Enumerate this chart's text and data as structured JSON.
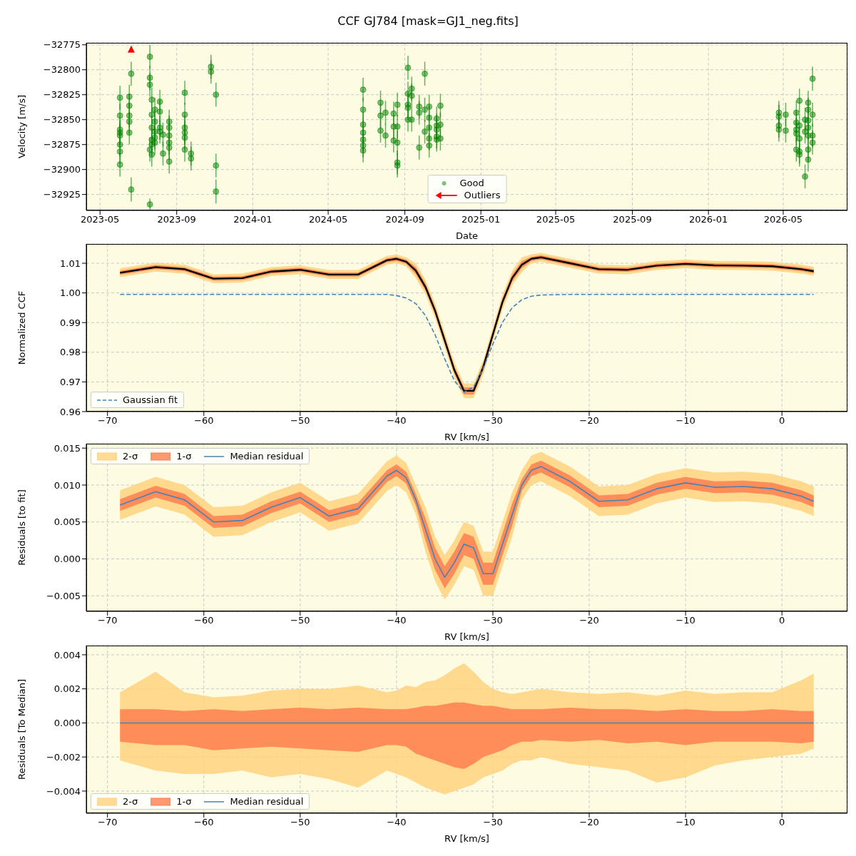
{
  "chart_data": [
    {
      "type": "scatter",
      "title": "CCF GJ784 [mask=GJ1_neg.fits]",
      "xlabel": "Date",
      "ylabel": "Velocity [m/s]",
      "xlim": [
        "2023-04-09",
        "2026-08-12"
      ],
      "xticks": [
        "2023-05",
        "2023-09",
        "2024-01",
        "2024-05",
        "2024-09",
        "2025-01",
        "2025-05",
        "2025-09",
        "2026-01",
        "2026-05"
      ],
      "ylim": [
        -32941,
        -32773
      ],
      "yticks": [
        -32925,
        -32900,
        -32875,
        -32850,
        -32825,
        -32800,
        -32775
      ],
      "grid": true,
      "legend": "bottom",
      "x": [
        "2023-06-02",
        "2023-06-02",
        "2023-06-02",
        "2023-06-02",
        "2023-06-02",
        "2023-06-02",
        "2023-06-02",
        "2023-06-02",
        "2023-06-17",
        "2023-06-17",
        "2023-06-17",
        "2023-06-17",
        "2023-06-17",
        "2023-06-20",
        "2023-06-20",
        "2023-07-20",
        "2023-07-20",
        "2023-07-20",
        "2023-07-20",
        "2023-07-20",
        "2023-07-23",
        "2023-07-23",
        "2023-07-23",
        "2023-07-23",
        "2023-07-23",
        "2023-07-23",
        "2023-07-28",
        "2023-07-28",
        "2023-07-28",
        "2023-07-28",
        "2023-07-28",
        "2023-08-05",
        "2023-08-05",
        "2023-08-05",
        "2023-08-05",
        "2023-08-10",
        "2023-08-10",
        "2023-08-20",
        "2023-08-20",
        "2023-08-20",
        "2023-08-20",
        "2023-08-20",
        "2023-08-20",
        "2023-09-14",
        "2023-09-14",
        "2023-09-14",
        "2023-09-14",
        "2023-09-14",
        "2023-09-14",
        "2023-09-24",
        "2023-09-24",
        "2023-10-26",
        "2023-10-26",
        "2023-11-03",
        "2023-11-03",
        "2023-11-03",
        "2024-06-26",
        "2024-06-26",
        "2024-06-26",
        "2024-06-26",
        "2024-06-26",
        "2024-06-26",
        "2024-06-26",
        "2024-07-24",
        "2024-07-24",
        "2024-07-24",
        "2024-08-01",
        "2024-08-01",
        "2024-08-14",
        "2024-08-14",
        "2024-08-14",
        "2024-08-20",
        "2024-08-20",
        "2024-08-20",
        "2024-08-20",
        "2024-08-20",
        "2024-09-06",
        "2024-09-06",
        "2024-09-06",
        "2024-09-06",
        "2024-09-06",
        "2024-09-12",
        "2024-09-12",
        "2024-09-12",
        "2024-09-24",
        "2024-09-24",
        "2024-09-24",
        "2024-10-03",
        "2024-10-03",
        "2024-10-03",
        "2024-10-10",
        "2024-10-10",
        "2024-10-10",
        "2024-10-10",
        "2024-10-10",
        "2024-10-22",
        "2024-10-22",
        "2024-10-22",
        "2024-10-22",
        "2024-10-22",
        "2024-10-28",
        "2024-10-28",
        "2024-10-28",
        "2026-04-24",
        "2026-04-24",
        "2026-04-24",
        "2026-04-24",
        "2026-05-05",
        "2026-05-05",
        "2026-05-22",
        "2026-05-22",
        "2026-05-22",
        "2026-05-22",
        "2026-05-22",
        "2026-05-27",
        "2026-05-27",
        "2026-05-27",
        "2026-05-27",
        "2026-05-27",
        "2026-06-05",
        "2026-06-05",
        "2026-06-05",
        "2026-06-10",
        "2026-06-10",
        "2026-06-10",
        "2026-06-10",
        "2026-06-10",
        "2026-06-10",
        "2026-06-10",
        "2026-06-17",
        "2026-06-17",
        "2026-06-17",
        "2026-06-17"
      ],
      "series": [
        {
          "name": "Good",
          "color": "#008000",
          "marker": "circle",
          "values": [
            -32828,
            -32846,
            -32860,
            -32863,
            -32866,
            -32875,
            -32882,
            -32895,
            -32827,
            -32836,
            -32846,
            -32852,
            -32863,
            -32804,
            -32920,
            -32787,
            -32808,
            -32815,
            -32880,
            -32935,
            -32830,
            -32845,
            -32858,
            -32870,
            -32875,
            -32885,
            -32840,
            -32852,
            -32862,
            -32868,
            -32873,
            -32832,
            -32842,
            -32858,
            -32862,
            -32865,
            -32884,
            -32852,
            -32858,
            -32866,
            -32873,
            -32878,
            -32892,
            -32823,
            -32845,
            -32858,
            -32863,
            -32868,
            -32880,
            -32884,
            -32889,
            -32797,
            -32802,
            -32825,
            -32896,
            -32922,
            -32820,
            -32840,
            -32855,
            -32863,
            -32870,
            -32876,
            -32881,
            -32833,
            -32846,
            -32861,
            -32843,
            -32866,
            -32844,
            -32857,
            -32871,
            -32835,
            -32857,
            -32873,
            -32893,
            -32896,
            -32798,
            -32824,
            -32835,
            -32838,
            -32850,
            -32819,
            -32826,
            -32850,
            -32837,
            -32843,
            -32878,
            -32804,
            -32840,
            -32862,
            -32837,
            -32848,
            -32858,
            -32869,
            -32876,
            -32849,
            -32856,
            -32860,
            -32867,
            -32870,
            -32836,
            -32855,
            -32869,
            -32843,
            -32847,
            -32856,
            -32860,
            -32845,
            -32861,
            -32843,
            -32853,
            -32860,
            -32864,
            -32880,
            -32831,
            -32856,
            -32869,
            -32882,
            -32885,
            -32850,
            -32862,
            -32907,
            -32833,
            -32840,
            -32851,
            -32858,
            -32866,
            -32880,
            -32890,
            -32809,
            -32845,
            -32866,
            -32873
          ],
          "errors": [
            12,
            12,
            12,
            12,
            12,
            12,
            12,
            12,
            12,
            12,
            12,
            12,
            12,
            12,
            12,
            12,
            12,
            12,
            12,
            6,
            12,
            12,
            12,
            12,
            12,
            12,
            12,
            12,
            12,
            12,
            12,
            12,
            12,
            12,
            12,
            12,
            12,
            12,
            12,
            12,
            12,
            12,
            12,
            12,
            12,
            12,
            12,
            12,
            12,
            12,
            12,
            12,
            12,
            12,
            12,
            12,
            12,
            12,
            12,
            12,
            12,
            12,
            12,
            12,
            12,
            12,
            12,
            12,
            12,
            12,
            12,
            12,
            12,
            12,
            12,
            12,
            12,
            12,
            12,
            12,
            12,
            12,
            12,
            12,
            12,
            12,
            12,
            12,
            12,
            12,
            12,
            12,
            12,
            12,
            12,
            12,
            12,
            12,
            12,
            12,
            12,
            12,
            12,
            12,
            12,
            12,
            12,
            12,
            12,
            12,
            12,
            12,
            12,
            12,
            12,
            12,
            12,
            12,
            12,
            12,
            12,
            12,
            12,
            12,
            12,
            12,
            12,
            12,
            12,
            12,
            12,
            12,
            12
          ]
        },
        {
          "name": "Outliers",
          "color": "#ff0000",
          "marker": "triangle",
          "x": [
            "2023-06-20"
          ],
          "values": [
            -32780
          ]
        }
      ]
    },
    {
      "type": "line",
      "xlabel": "RV [km/s]",
      "ylabel": "Normalized CCF",
      "xlim": [
        -72.2,
        6.8
      ],
      "xticks": [
        -70,
        -60,
        -50,
        -40,
        -30,
        -20,
        -10,
        0
      ],
      "ylim": [
        0.96,
        1.0165
      ],
      "yticks": [
        {
          "value": 0.96,
          "label": "0.96"
        },
        {
          "value": 0.97,
          "label": "0.97"
        },
        {
          "value": 0.98,
          "label": "0.98"
        },
        {
          "value": 0.99,
          "label": "0.99"
        },
        {
          "value": 1.0,
          "label": "1.00"
        },
        {
          "value": 1.01,
          "label": "1.01"
        }
      ],
      "grid": true,
      "legend": "bottom left",
      "x": [
        -68.7,
        -65,
        -62,
        -59,
        -56,
        -53,
        -50,
        -47,
        -44,
        -41,
        -40,
        -39,
        -38,
        -37,
        -36,
        -35,
        -34,
        -33,
        -32,
        -31,
        -30,
        -29,
        -28,
        -27,
        -26,
        -25,
        -22,
        -19,
        -16,
        -13,
        -10,
        -7,
        -4,
        -1,
        2,
        3.3
      ],
      "series": [
        {
          "color": "#ffd27f",
          "values": [
            null,
            null,
            null,
            null,
            null,
            null,
            null,
            null,
            null,
            null,
            null,
            null,
            null,
            null,
            null,
            null,
            null,
            null,
            null,
            null,
            null,
            null,
            null,
            null,
            null,
            null,
            null,
            null,
            null,
            null,
            null,
            null,
            null,
            null,
            null,
            null
          ],
          "lower": [
            1.0053,
            1.0072,
            1.0065,
            1.0033,
            1.0035,
            1.0057,
            1.0063,
            1.0047,
            1.0047,
            1.0095,
            1.01,
            1.009,
            1.005,
            0.9995,
            0.9915,
            0.9815,
            0.9715,
            0.9645,
            0.9645,
            0.9725,
            0.9835,
            0.9945,
            1.0025,
            1.007,
            1.01,
            1.0105,
            1.0085,
            1.0065,
            1.0063,
            1.0077,
            1.0083,
            1.0078,
            1.0077,
            1.0075,
            1.0065,
            1.0058
          ],
          "upper": [
            1.0083,
            1.0102,
            1.0095,
            1.0063,
            1.0065,
            1.0087,
            1.0093,
            1.0077,
            1.0077,
            1.0125,
            1.013,
            1.012,
            1.01,
            1.0045,
            0.9965,
            0.9865,
            0.9765,
            0.9695,
            0.9695,
            0.9775,
            0.9885,
            0.9995,
            1.0075,
            1.012,
            1.013,
            1.0135,
            1.0115,
            1.0095,
            1.0093,
            1.0107,
            1.0113,
            1.0108,
            1.0107,
            1.0105,
            1.0095,
            1.0088
          ]
        },
        {
          "color": "#ff7f50",
          "values": [
            null,
            null,
            null,
            null,
            null,
            null,
            null,
            null,
            null,
            null,
            null,
            null,
            null,
            null,
            null,
            null,
            null,
            null,
            null,
            null,
            null,
            null,
            null,
            null,
            null,
            null,
            null,
            null,
            null,
            null,
            null,
            null,
            null,
            null,
            null,
            null
          ],
          "lower": [
            1.0061,
            1.008,
            1.0073,
            1.0041,
            1.0043,
            1.0065,
            1.0071,
            1.0055,
            1.0055,
            1.0103,
            1.0108,
            1.0098,
            1.0063,
            1.0008,
            0.9928,
            0.9828,
            0.9728,
            0.9658,
            0.9658,
            0.9738,
            0.9848,
            0.9958,
            1.0038,
            1.0083,
            1.0108,
            1.0113,
            1.0093,
            1.0073,
            1.0071,
            1.0085,
            1.0091,
            1.0086,
            1.0085,
            1.0083,
            1.0073,
            1.0066
          ],
          "upper": [
            1.0075,
            1.0094,
            1.0087,
            1.0055,
            1.0057,
            1.0079,
            1.0085,
            1.0069,
            1.0069,
            1.0117,
            1.0122,
            1.0112,
            1.0087,
            1.0032,
            0.9952,
            0.9852,
            0.9752,
            0.9682,
            0.9682,
            0.9762,
            0.9872,
            0.9982,
            1.0062,
            1.0107,
            1.0122,
            1.0127,
            1.0107,
            1.0087,
            1.0085,
            1.0099,
            1.0105,
            1.01,
            1.0099,
            1.0097,
            1.0087,
            1.008
          ]
        },
        {
          "color": "#000000",
          "values": [
            1.0068,
            1.0087,
            1.008,
            1.0048,
            1.005,
            1.0072,
            1.0078,
            1.0062,
            1.0062,
            1.011,
            1.0115,
            1.0105,
            1.0075,
            1.002,
            0.994,
            0.984,
            0.974,
            0.967,
            0.967,
            0.975,
            0.986,
            0.997,
            1.005,
            1.0095,
            1.0115,
            1.012,
            1.01,
            1.008,
            1.0078,
            1.0092,
            1.0098,
            1.0093,
            1.0092,
            1.009,
            1.008,
            1.0073
          ]
        },
        {
          "name": "Gaussian fit",
          "color": "#4682b4",
          "line_style": "dashed",
          "values": [
            0.9995,
            0.9995,
            0.9995,
            0.9995,
            0.9995,
            0.9995,
            0.9995,
            0.9995,
            0.9995,
            0.9995,
            0.9991,
            0.9983,
            0.9964,
            0.9924,
            0.9859,
            0.9778,
            0.9704,
            0.9665,
            0.9683,
            0.9746,
            0.9828,
            0.9901,
            0.995,
            0.9977,
            0.9989,
            0.9993,
            0.9995,
            0.9995,
            0.9995,
            0.9995,
            0.9995,
            0.9995,
            0.9995,
            0.9995,
            0.9995,
            0.9995
          ]
        }
      ]
    },
    {
      "type": "line",
      "xlabel": "RV [km/s]",
      "ylabel": "Residuals [to fit]",
      "xlim": [
        -72.2,
        6.8
      ],
      "xticks": [
        -70,
        -60,
        -50,
        -40,
        -30,
        -20,
        -10,
        0
      ],
      "ylim": [
        -0.0071,
        0.0156
      ],
      "yticks": [
        {
          "value": -0.005,
          "label": "−0.005"
        },
        {
          "value": 0,
          "label": "0.000"
        },
        {
          "value": 0.005,
          "label": "0.005"
        },
        {
          "value": 0.01,
          "label": "0.010"
        },
        {
          "value": 0.015,
          "label": "0.015"
        }
      ],
      "grid": true,
      "legend": "top left",
      "x": [
        -68.7,
        -65,
        -62,
        -59,
        -56,
        -53,
        -50,
        -47,
        -44,
        -41,
        -40,
        -39,
        -38,
        -37,
        -36,
        -35,
        -34,
        -33,
        -32,
        -31,
        -30,
        -29,
        -28,
        -27,
        -26,
        -25,
        -22,
        -19,
        -16,
        -13,
        -10,
        -7,
        -4,
        -1,
        2,
        3.3
      ],
      "series": [
        {
          "name": "2-σ",
          "color": "#ffd27f",
          "values": [
            null,
            null,
            null,
            null,
            null,
            null,
            null,
            null,
            null,
            null,
            null,
            null,
            null,
            null,
            null,
            null,
            null,
            null,
            null,
            null,
            null,
            null,
            null,
            null,
            null,
            null,
            null,
            null,
            null,
            null,
            null,
            null,
            null,
            null,
            null,
            null
          ],
          "lower": [
            0.0053,
            0.0071,
            0.006,
            0.003,
            0.0032,
            0.005,
            0.0063,
            0.0038,
            0.0048,
            0.0092,
            0.01,
            0.009,
            0.006,
            0.001,
            -0.003,
            -0.0055,
            -0.0035,
            -0.001,
            -0.0015,
            -0.005,
            -0.005,
            -0.001,
            0.003,
            0.008,
            0.01,
            0.0105,
            0.0085,
            0.0058,
            0.006,
            0.0075,
            0.0083,
            0.0077,
            0.0078,
            0.0075,
            0.0065,
            0.0058
          ],
          "upper": [
            0.0093,
            0.0111,
            0.01,
            0.007,
            0.0072,
            0.009,
            0.0103,
            0.0078,
            0.0088,
            0.0132,
            0.014,
            0.013,
            0.01,
            0.007,
            0.003,
            0.0005,
            0.0025,
            0.005,
            0.0045,
            0.001,
            0.001,
            0.005,
            0.009,
            0.012,
            0.014,
            0.0145,
            0.0125,
            0.0098,
            0.01,
            0.0115,
            0.0123,
            0.0117,
            0.0118,
            0.0115,
            0.0105,
            0.0098
          ]
        },
        {
          "name": "1-σ",
          "color": "#ff7f50",
          "values": [
            null,
            null,
            null,
            null,
            null,
            null,
            null,
            null,
            null,
            null,
            null,
            null,
            null,
            null,
            null,
            null,
            null,
            null,
            null,
            null,
            null,
            null,
            null,
            null,
            null,
            null,
            null,
            null,
            null,
            null,
            null,
            null,
            null,
            null,
            null,
            null
          ],
          "lower": [
            0.0065,
            0.0083,
            0.0072,
            0.0042,
            0.0044,
            0.0062,
            0.0075,
            0.005,
            0.006,
            0.0104,
            0.0112,
            0.0102,
            0.0072,
            0.0025,
            -0.0015,
            -0.004,
            -0.002,
            0.0005,
            0.0,
            -0.0035,
            -0.0035,
            0.0005,
            0.0045,
            0.0092,
            0.0112,
            0.0117,
            0.0097,
            0.007,
            0.0072,
            0.0087,
            0.0095,
            0.0089,
            0.009,
            0.0087,
            0.0077,
            0.007
          ],
          "upper": [
            0.0081,
            0.0099,
            0.0088,
            0.0058,
            0.006,
            0.0078,
            0.0091,
            0.0066,
            0.0076,
            0.012,
            0.0128,
            0.0118,
            0.0088,
            0.0055,
            0.0015,
            -0.001,
            0.001,
            0.0035,
            0.003,
            -0.0005,
            -0.0005,
            0.0035,
            0.0075,
            0.0108,
            0.0128,
            0.0133,
            0.0113,
            0.0086,
            0.0088,
            0.0103,
            0.0111,
            0.0105,
            0.0106,
            0.0103,
            0.0093,
            0.0086
          ]
        },
        {
          "name": "Median residual",
          "color": "#4682b4",
          "values": [
            0.0073,
            0.0091,
            0.008,
            0.005,
            0.0052,
            0.007,
            0.0083,
            0.0058,
            0.0068,
            0.0112,
            0.012,
            0.011,
            0.008,
            0.004,
            0.0,
            -0.0025,
            -0.0005,
            0.002,
            0.0015,
            -0.002,
            -0.002,
            0.002,
            0.006,
            0.01,
            0.012,
            0.0125,
            0.0105,
            0.0078,
            0.008,
            0.0095,
            0.0103,
            0.0097,
            0.0098,
            0.0095,
            0.0085,
            0.0078
          ]
        }
      ]
    },
    {
      "type": "line",
      "xlabel": "RV [km/s]",
      "ylabel": "Residuals [To Median]",
      "xlim": [
        -72.2,
        6.8
      ],
      "xticks": [
        -70,
        -60,
        -50,
        -40,
        -30,
        -20,
        -10,
        0
      ],
      "ylim": [
        -0.0053,
        0.00454
      ],
      "yticks": [
        {
          "value": -0.004,
          "label": "−0.004"
        },
        {
          "value": -0.002,
          "label": "−0.002"
        },
        {
          "value": 0,
          "label": "0.000"
        },
        {
          "value": 0.002,
          "label": "0.002"
        },
        {
          "value": 0.004,
          "label": "0.004"
        }
      ],
      "grid": true,
      "legend": "bottom left",
      "x": [
        -68.7,
        -65,
        -62,
        -59,
        -56,
        -53,
        -50,
        -47,
        -44,
        -41,
        -40,
        -39,
        -38,
        -37,
        -36,
        -35,
        -34,
        -33,
        -32,
        -31,
        -30,
        -29,
        -28,
        -27,
        -26,
        -25,
        -22,
        -19,
        -16,
        -13,
        -10,
        -7,
        -4,
        -1,
        2,
        3.3
      ],
      "series": [
        {
          "name": "2-σ",
          "color": "#ffd27f",
          "values": [
            null,
            null,
            null,
            null,
            null,
            null,
            null,
            null,
            null,
            null,
            null,
            null,
            null,
            null,
            null,
            null,
            null,
            null,
            null,
            null,
            null,
            null,
            null,
            null,
            null,
            null,
            null,
            null,
            null,
            null,
            null,
            null,
            null,
            null,
            null,
            null
          ],
          "lower": [
            -0.0022,
            -0.0028,
            -0.003,
            -0.003,
            -0.0028,
            -0.0032,
            -0.003,
            -0.0033,
            -0.0038,
            -0.0028,
            -0.003,
            -0.0032,
            -0.0035,
            -0.0038,
            -0.004,
            -0.0042,
            -0.004,
            -0.0038,
            -0.0036,
            -0.0032,
            -0.003,
            -0.0028,
            -0.0024,
            -0.0022,
            -0.0022,
            -0.002,
            -0.0024,
            -0.0026,
            -0.0028,
            -0.0035,
            -0.0032,
            -0.0025,
            -0.0022,
            -0.002,
            -0.0018,
            -0.0015
          ],
          "upper": [
            0.0018,
            0.003,
            0.0018,
            0.0015,
            0.0016,
            0.0019,
            0.002,
            0.002,
            0.0022,
            0.0018,
            0.0019,
            0.0022,
            0.0021,
            0.0024,
            0.0025,
            0.0028,
            0.0032,
            0.0035,
            0.003,
            0.0024,
            0.002,
            0.0018,
            0.0017,
            0.0018,
            0.0019,
            0.002,
            0.0018,
            0.0017,
            0.0018,
            0.0016,
            0.0019,
            0.0017,
            0.0018,
            0.0018,
            0.0025,
            0.0029
          ]
        },
        {
          "name": "1-σ",
          "color": "#ff7f50",
          "values": [
            null,
            null,
            null,
            null,
            null,
            null,
            null,
            null,
            null,
            null,
            null,
            null,
            null,
            null,
            null,
            null,
            null,
            null,
            null,
            null,
            null,
            null,
            null,
            null,
            null,
            null,
            null,
            null,
            null,
            null,
            null,
            null,
            null,
            null,
            null,
            null
          ],
          "lower": [
            -0.0011,
            -0.0013,
            -0.0013,
            -0.0016,
            -0.0015,
            -0.0014,
            -0.0015,
            -0.0016,
            -0.0017,
            -0.0013,
            -0.0013,
            -0.0014,
            -0.0018,
            -0.002,
            -0.0022,
            -0.0024,
            -0.0026,
            -0.0027,
            -0.0024,
            -0.002,
            -0.0018,
            -0.0016,
            -0.0013,
            -0.0011,
            -0.0011,
            -0.001,
            -0.0011,
            -0.001,
            -0.0012,
            -0.0011,
            -0.0013,
            -0.0011,
            -0.0011,
            -0.0011,
            -0.0012,
            -0.0011
          ],
          "upper": [
            0.0008,
            0.0008,
            0.0007,
            0.0008,
            0.0007,
            0.0008,
            0.0009,
            0.0008,
            0.0009,
            0.0008,
            0.0008,
            0.0008,
            0.0009,
            0.001,
            0.001,
            0.0011,
            0.0012,
            0.0012,
            0.0011,
            0.001,
            0.001,
            0.0009,
            0.0008,
            0.0008,
            0.0008,
            0.0008,
            0.0009,
            0.0008,
            0.0008,
            0.0007,
            0.0008,
            0.0007,
            0.0007,
            0.0008,
            0.0007,
            0.0007
          ]
        },
        {
          "name": "Median residual",
          "color": "#4682b4",
          "values": [
            0,
            0,
            0,
            0,
            0,
            0,
            0,
            0,
            0,
            0,
            0,
            0,
            0,
            0,
            0,
            0,
            0,
            0,
            0,
            0,
            0,
            0,
            0,
            0,
            0,
            0,
            0,
            0,
            0,
            0,
            0,
            0,
            0,
            0,
            0,
            0
          ]
        }
      ]
    }
  ]
}
